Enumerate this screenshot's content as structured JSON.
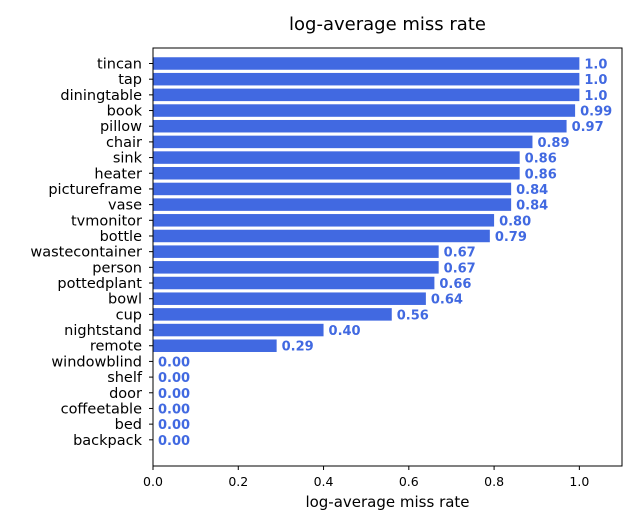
{
  "chart_data": {
    "type": "bar",
    "orientation": "horizontal",
    "title": "log-average miss rate",
    "xlabel": "log-average miss rate",
    "ylabel": "",
    "xlim": [
      0,
      1.1
    ],
    "xticks": [
      "0.0",
      "0.2",
      "0.4",
      "0.6",
      "0.8",
      "1.0"
    ],
    "grid": false,
    "bar_color": "#4169e1",
    "label_color": "#4169e1",
    "categories": [
      "tincan",
      "tap",
      "diningtable",
      "book",
      "pillow",
      "chair",
      "sink",
      "heater",
      "pictureframe",
      "vase",
      "tvmonitor",
      "bottle",
      "wastecontainer",
      "person",
      "pottedplant",
      "bowl",
      "cup",
      "nightstand",
      "remote",
      "windowblind",
      "shelf",
      "door",
      "coffeetable",
      "bed",
      "backpack"
    ],
    "values": [
      1.0,
      1.0,
      1.0,
      0.99,
      0.97,
      0.89,
      0.86,
      0.86,
      0.84,
      0.84,
      0.8,
      0.79,
      0.67,
      0.67,
      0.66,
      0.64,
      0.56,
      0.4,
      0.29,
      0.0,
      0.0,
      0.0,
      0.0,
      0.0,
      0.0
    ],
    "value_labels": [
      "1.0",
      "1.0",
      "1.0",
      "0.99",
      "0.97",
      "0.89",
      "0.86",
      "0.86",
      "0.84",
      "0.84",
      "0.80",
      "0.79",
      "0.67",
      "0.67",
      "0.66",
      "0.64",
      "0.56",
      "0.40",
      "0.29",
      "0.00",
      "0.00",
      "0.00",
      "0.00",
      "0.00",
      "0.00"
    ]
  }
}
